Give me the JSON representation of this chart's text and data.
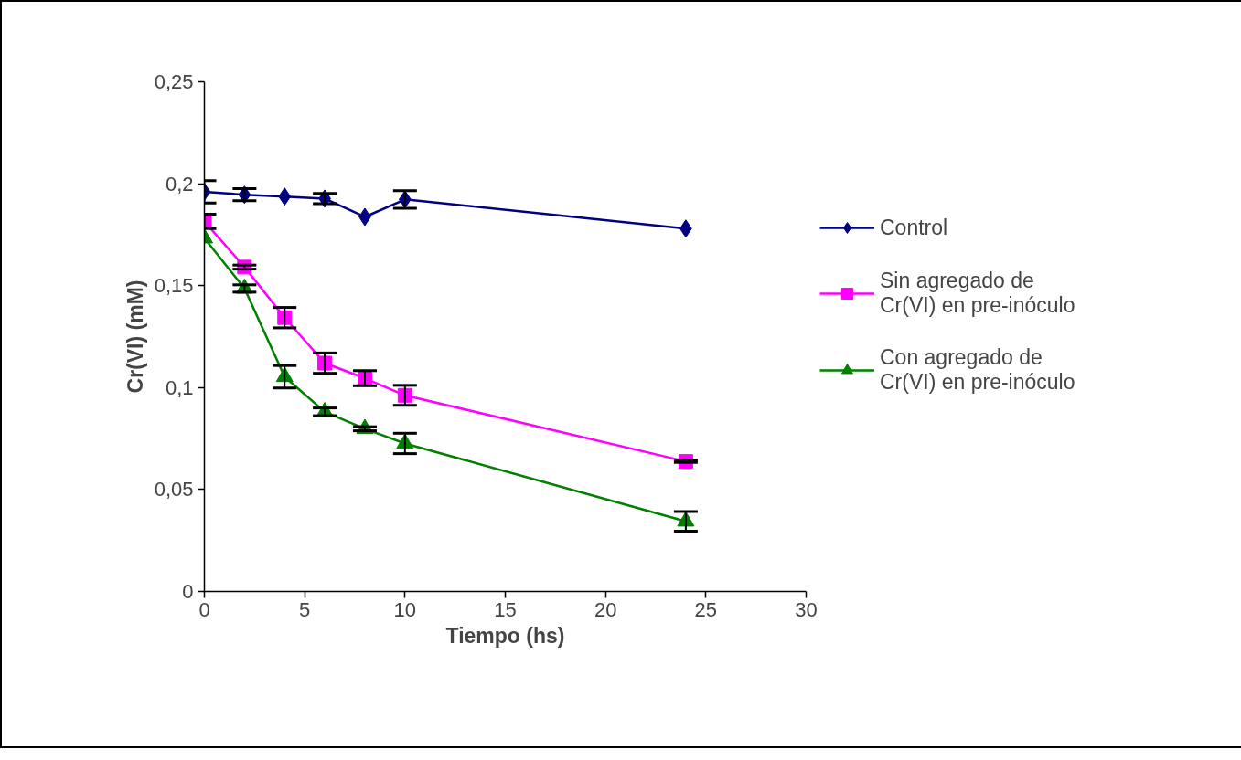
{
  "chart_data": {
    "type": "line",
    "xlabel": "Tiempo (hs)",
    "ylabel": "Cr(VI) (mM)",
    "x": [
      0,
      2,
      4,
      6,
      8,
      10,
      24
    ],
    "series": [
      {
        "name": "Control",
        "color": "#000080",
        "marker": "diamond",
        "values": [
          0.196,
          0.1946,
          0.1937,
          0.1927,
          0.1837,
          0.1923,
          0.178
        ],
        "errors": [
          0.0055,
          0.003,
          null,
          0.0025,
          null,
          0.0043,
          null
        ]
      },
      {
        "name": "Sin agregado de Cr(VI) en pre-inóculo",
        "color": "#ff00ff",
        "marker": "square",
        "values": [
          0.1815,
          0.1591,
          0.1343,
          0.112,
          0.1046,
          0.0962,
          0.0638
        ],
        "errors": [
          0.0035,
          0.001,
          0.005,
          0.005,
          0.0037,
          0.0049,
          0.0005
        ]
      },
      {
        "name": "Con agregado de Cr(VI) en pre-inóculo",
        "color": "#008000",
        "marker": "triangle",
        "values": [
          0.1733,
          0.1486,
          0.1053,
          0.0881,
          0.0798,
          0.0726,
          0.0344
        ],
        "errors": [
          null,
          0.0018,
          0.0055,
          0.0019,
          0.001,
          0.005,
          0.0048
        ]
      }
    ],
    "xlim": [
      0,
      30
    ],
    "xticks": [
      0,
      5,
      10,
      15,
      20,
      25,
      30
    ],
    "ylim": [
      0,
      0.25
    ],
    "yticks": [
      0,
      {
        "value": 0.05,
        "label": "0,05"
      },
      {
        "value": 0.1,
        "label": "0,1"
      },
      {
        "value": 0.15,
        "label": "0,15"
      },
      {
        "value": 0.2,
        "label": "0,2"
      },
      {
        "value": 0.25,
        "label": "0,25"
      }
    ],
    "legend": "right",
    "grid": false,
    "line_style": "solid"
  }
}
